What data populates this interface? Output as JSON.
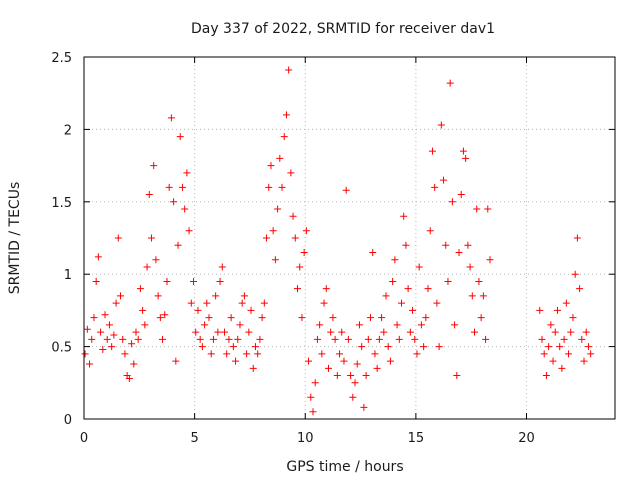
{
  "chart_data": {
    "type": "scatter",
    "title": "Day 337 of 2022, SRMTID for receiver dav1",
    "xlabel": "GPS time / hours",
    "ylabel": "SRMTID / TECUs",
    "xlim": [
      0,
      24
    ],
    "ylim": [
      0,
      2.5
    ],
    "xticks": [
      0,
      5,
      10,
      15,
      20
    ],
    "xtick_labels": [
      "0",
      "5",
      "10",
      "15",
      "20"
    ],
    "yticks": [
      0,
      0.5,
      1,
      1.5,
      2,
      2.5
    ],
    "ytick_labels": [
      "0",
      "0.5",
      "1",
      "1.5",
      "2",
      "2.5"
    ],
    "grid": true,
    "marker": "+",
    "color": "#ff0000",
    "series": [
      {
        "name": "dav1",
        "x": [
          0.05,
          0.15,
          0.25,
          0.35,
          0.45,
          0.55,
          0.65,
          0.75,
          0.85,
          0.95,
          1.05,
          1.15,
          1.25,
          1.35,
          1.45,
          1.55,
          1.65,
          1.75,
          1.85,
          1.95,
          2.05,
          2.15,
          2.25,
          2.35,
          2.45,
          2.55,
          2.65,
          2.75,
          2.85,
          2.95,
          3.05,
          3.15,
          3.25,
          3.35,
          3.45,
          3.55,
          3.65,
          3.75,
          3.85,
          3.95,
          4.05,
          4.15,
          4.25,
          4.35,
          4.45,
          4.55,
          4.65,
          4.75,
          4.85,
          4.95,
          5.05,
          5.15,
          5.25,
          5.35,
          5.45,
          5.55,
          5.65,
          5.75,
          5.85,
          5.95,
          6.05,
          6.15,
          6.25,
          6.35,
          6.45,
          6.55,
          6.65,
          6.75,
          6.85,
          6.95,
          7.05,
          7.15,
          7.25,
          7.35,
          7.45,
          7.55,
          7.65,
          7.75,
          7.85,
          7.95,
          8.05,
          8.15,
          8.25,
          8.35,
          8.45,
          8.55,
          8.65,
          8.75,
          8.85,
          8.95,
          9.05,
          9.15,
          9.25,
          9.35,
          9.45,
          9.55,
          9.65,
          9.75,
          9.85,
          9.95,
          10.05,
          10.15,
          10.25,
          10.35,
          10.45,
          10.55,
          10.65,
          10.75,
          10.85,
          10.95,
          11.05,
          11.15,
          11.25,
          11.35,
          11.45,
          11.55,
          11.65,
          11.75,
          11.85,
          11.95,
          12.05,
          12.15,
          12.25,
          12.35,
          12.45,
          12.55,
          12.65,
          12.75,
          12.85,
          12.95,
          13.05,
          13.15,
          13.25,
          13.35,
          13.45,
          13.55,
          13.65,
          13.75,
          13.85,
          13.95,
          14.05,
          14.15,
          14.25,
          14.35,
          14.45,
          14.55,
          14.65,
          14.75,
          14.85,
          14.95,
          15.05,
          15.15,
          15.25,
          15.35,
          15.45,
          15.55,
          15.65,
          15.75,
          15.85,
          15.95,
          16.05,
          16.15,
          16.25,
          16.35,
          16.45,
          16.55,
          16.65,
          16.75,
          16.85,
          16.95,
          17.05,
          17.15,
          17.25,
          17.35,
          17.45,
          17.55,
          17.65,
          17.75,
          17.85,
          17.95,
          18.05,
          18.15,
          18.25,
          18.35,
          20.6,
          20.7,
          20.8,
          20.9,
          21.0,
          21.1,
          21.2,
          21.3,
          21.4,
          21.5,
          21.6,
          21.7,
          21.8,
          21.9,
          22.0,
          22.1,
          22.2,
          22.3,
          22.4,
          22.5,
          22.6,
          22.7,
          22.8,
          22.9
        ],
        "y": [
          0.45,
          0.62,
          0.38,
          0.55,
          0.7,
          0.95,
          1.12,
          0.6,
          0.48,
          0.72,
          0.55,
          0.65,
          0.5,
          0.58,
          0.8,
          1.25,
          0.85,
          0.55,
          0.45,
          0.3,
          0.28,
          0.52,
          0.38,
          0.6,
          0.55,
          0.9,
          0.75,
          0.65,
          1.05,
          1.55,
          1.25,
          1.75,
          1.1,
          0.85,
          0.7,
          0.55,
          0.72,
          0.95,
          1.6,
          2.08,
          1.5,
          0.4,
          1.2,
          1.95,
          1.6,
          1.45,
          1.7,
          1.3,
          0.8,
          0.95,
          0.6,
          0.75,
          0.55,
          0.5,
          0.65,
          0.8,
          0.7,
          0.45,
          0.55,
          0.85,
          0.6,
          0.95,
          1.05,
          0.6,
          0.45,
          0.55,
          0.7,
          0.5,
          0.4,
          0.55,
          0.65,
          0.8,
          0.85,
          0.45,
          0.6,
          0.75,
          0.35,
          0.5,
          0.45,
          0.55,
          0.7,
          0.8,
          1.25,
          1.6,
          1.75,
          1.3,
          1.1,
          1.45,
          1.8,
          1.6,
          1.95,
          2.1,
          2.41,
          1.7,
          1.4,
          1.25,
          0.9,
          1.05,
          0.7,
          1.15,
          1.3,
          0.4,
          0.15,
          0.05,
          0.25,
          0.55,
          0.65,
          0.45,
          0.8,
          0.9,
          0.35,
          0.6,
          0.7,
          0.55,
          0.3,
          0.45,
          0.6,
          0.4,
          1.58,
          0.55,
          0.3,
          0.15,
          0.25,
          0.38,
          0.65,
          0.5,
          0.08,
          0.3,
          0.55,
          0.7,
          1.15,
          0.45,
          0.35,
          0.55,
          0.7,
          0.6,
          0.85,
          0.5,
          0.4,
          0.95,
          1.1,
          0.65,
          0.55,
          0.8,
          1.4,
          1.2,
          0.9,
          0.6,
          0.75,
          0.55,
          0.45,
          1.05,
          0.65,
          0.5,
          0.7,
          0.9,
          1.3,
          1.85,
          1.6,
          0.8,
          0.5,
          2.03,
          1.65,
          1.2,
          0.95,
          2.32,
          1.5,
          0.65,
          0.3,
          1.15,
          1.55,
          1.85,
          1.8,
          1.2,
          1.05,
          0.85,
          0.6,
          1.45,
          0.95,
          0.7,
          0.85,
          0.55,
          1.45,
          1.1,
          0.75,
          0.55,
          0.45,
          0.3,
          0.5,
          0.65,
          0.4,
          0.6,
          0.75,
          0.5,
          0.35,
          0.55,
          0.8,
          0.45,
          0.6,
          0.7,
          1.0,
          1.25,
          0.9,
          0.55,
          0.4,
          0.6,
          0.5,
          0.45
        ]
      }
    ]
  }
}
